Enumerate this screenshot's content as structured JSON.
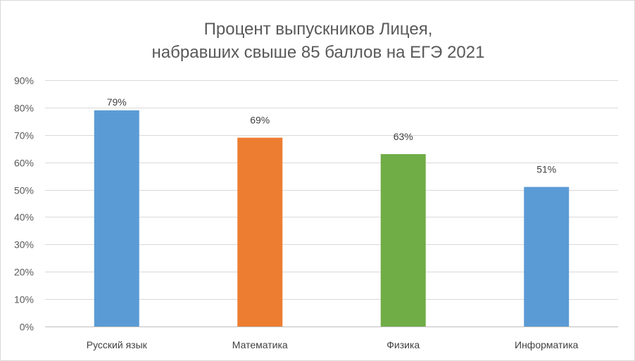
{
  "chart_data": {
    "type": "bar",
    "title_line1": "Процент выпускников Лицея,",
    "title_line2": "набравших свыше 85 баллов на ЕГЭ 2021",
    "categories": [
      "Русский язык",
      "Математика",
      "Физика",
      "Информатика"
    ],
    "values": [
      79,
      69,
      63,
      51
    ],
    "data_labels": [
      "79%",
      "69%",
      "63%",
      "51%"
    ],
    "colors": [
      "#5b9bd5",
      "#ed7d31",
      "#70ad47",
      "#5b9bd5"
    ],
    "ylim": [
      0,
      90
    ],
    "yticks": [
      0,
      10,
      20,
      30,
      40,
      50,
      60,
      70,
      80,
      90
    ],
    "ytick_labels": [
      "0%",
      "10%",
      "20%",
      "30%",
      "40%",
      "50%",
      "60%",
      "70%",
      "80%",
      "90%"
    ],
    "grid": true,
    "legend": "none",
    "xlabel": "",
    "ylabel": ""
  }
}
